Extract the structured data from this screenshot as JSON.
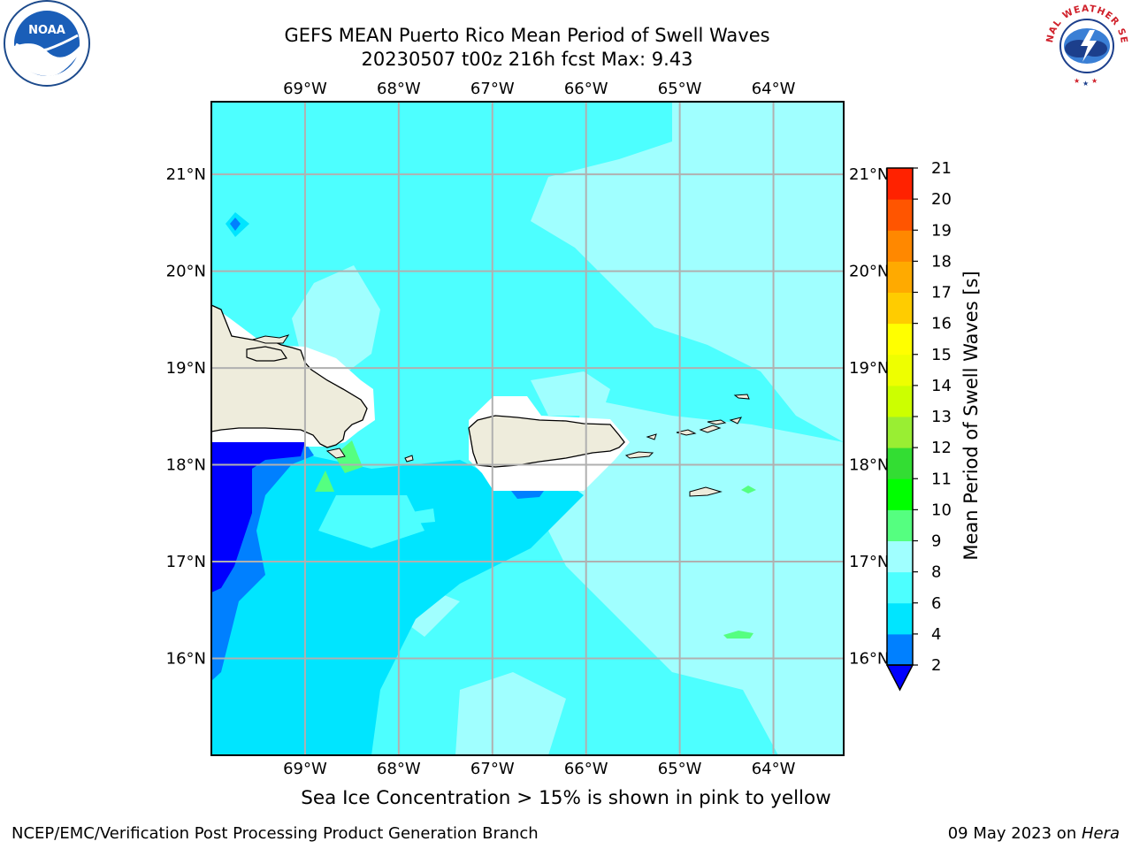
{
  "title": {
    "line1": "GEFS MEAN Puerto Rico Mean Period of Swell Waves",
    "line2": "20230507 t00z 216h fcst   Max: 9.43"
  },
  "logos": {
    "noaa_text": "NOAA",
    "nws_text": "NATIONAL WEATHER SERVICE"
  },
  "map": {
    "lon_labels": [
      "69°W",
      "68°W",
      "67°W",
      "66°W",
      "65°W",
      "64°W"
    ],
    "lat_labels": [
      "21°N",
      "20°N",
      "19°N",
      "18°N",
      "17°N",
      "16°N"
    ],
    "lon_range": [
      -70.0,
      -63.25
    ],
    "lat_range": [
      15.0,
      21.75
    ],
    "land_color": "#eeecdc",
    "coast_color": "#000000",
    "grid_color": "#b0b0b0"
  },
  "colorbar": {
    "label": "Mean Period of Swell Waves [s]",
    "ticks": [
      "2",
      "4",
      "6",
      "8",
      "9",
      "10",
      "11",
      "12",
      "13",
      "14",
      "15",
      "16",
      "17",
      "18",
      "19",
      "20",
      "21"
    ],
    "colors": [
      "#0080ff",
      "#00e5ff",
      "#4dffff",
      "#a0ffff",
      "#55ff80",
      "#00ff00",
      "#33dd33",
      "#99ee33",
      "#ccff00",
      "#eeff00",
      "#ffff00",
      "#ffcc00",
      "#ffaa00",
      "#ff8800",
      "#ff5500",
      "#ff2200"
    ],
    "under_color": "#0000ff",
    "extend": "min"
  },
  "caption": "Sea Ice Concentration > 15% is shown in pink to yellow",
  "footer": {
    "left": "NCEP/EMC/Verification Post Processing Product Generation Branch",
    "date": "09 May 2023 on ",
    "machine": "Hera"
  }
}
